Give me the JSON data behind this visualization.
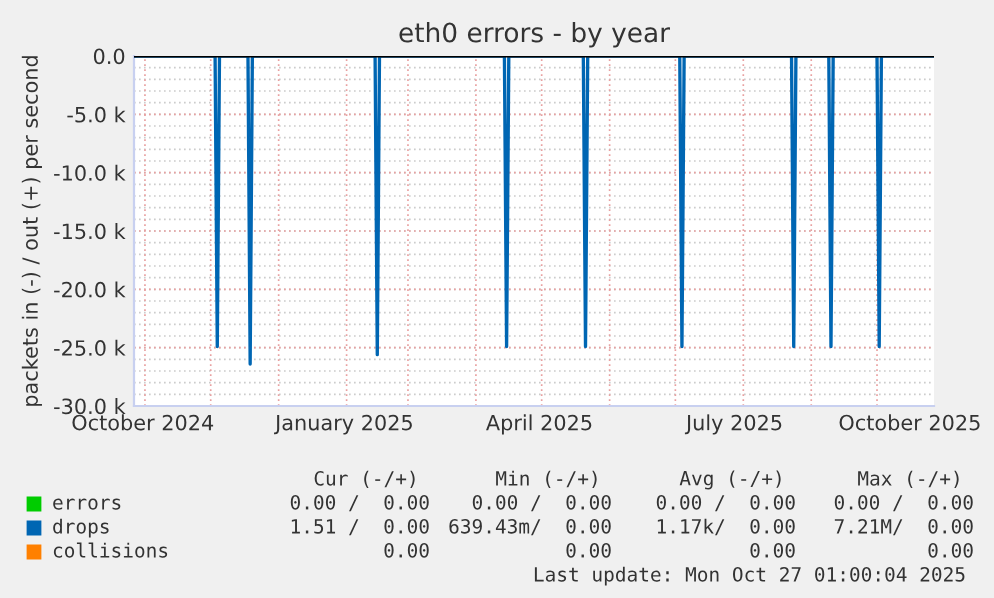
{
  "chart_data": {
    "type": "line",
    "title": "eth0 errors - by year",
    "ylabel": "packets in (-) / out (+) per second",
    "xlim": [
      "2024-10-27",
      "2025-10-27"
    ],
    "xticks": [
      {
        "value": "2024-11-01",
        "label": null
      },
      {
        "value": "2024-12-01",
        "label": null
      },
      {
        "value": "2025-01-01",
        "label": null
      },
      {
        "value": "2025-02-01",
        "label": null
      },
      {
        "value": "2025-03-01",
        "label": null
      },
      {
        "value": "2025-04-01",
        "label": null
      },
      {
        "value": "2025-05-01",
        "label": null
      },
      {
        "value": "2025-06-01",
        "label": null
      },
      {
        "value": "2025-07-01",
        "label": null
      },
      {
        "value": "2025-08-01",
        "label": null
      },
      {
        "value": "2025-09-01",
        "label": null
      },
      {
        "value": "2025-10-01",
        "label": null
      },
      {
        "value": "2024-10-31",
        "label": "October 2024"
      },
      {
        "value": "2025-01-31",
        "label": "January 2025"
      },
      {
        "value": "2025-04-30",
        "label": "April 2025"
      },
      {
        "value": "2025-07-28",
        "label": "July 2025"
      },
      {
        "value": "2025-10-16",
        "label": "October 2025"
      }
    ],
    "ylim": [
      -30000,
      0
    ],
    "yticks": [
      {
        "value": -30000,
        "label": "-30.0 k"
      },
      {
        "value": -25000,
        "label": "-25.0 k"
      },
      {
        "value": -20000,
        "label": "-20.0 k"
      },
      {
        "value": -15000,
        "label": "-15.0 k"
      },
      {
        "value": -10000,
        "label": "-10.0 k"
      },
      {
        "value": -5000,
        "label": "-5.0 k"
      },
      {
        "value": 0,
        "label": "0.0"
      }
    ],
    "grid": true,
    "legend": "bottom",
    "marker": "none",
    "line_style": "solid",
    "ref_lines": [
      {
        "axis": "y",
        "value": 0,
        "color": "#000000"
      }
    ],
    "series": [
      {
        "name": "errors",
        "color": "#00cc00"
      },
      {
        "name": "drops",
        "color": "#0066b3",
        "x": [
          "2024-10-27",
          "2024-12-03",
          "2024-12-04",
          "2024-12-05",
          "2024-12-18",
          "2024-12-19",
          "2024-12-20",
          "2025-02-14",
          "2025-02-15",
          "2025-02-16",
          "2025-04-14",
          "2025-04-15",
          "2025-04-16",
          "2025-05-20",
          "2025-05-21",
          "2025-05-22",
          "2025-07-03",
          "2025-07-04",
          "2025-07-05",
          "2025-08-23",
          "2025-08-24",
          "2025-08-25",
          "2025-09-09",
          "2025-09-10",
          "2025-09-11",
          "2025-10-01",
          "2025-10-02",
          "2025-10-03",
          "2025-10-27"
        ],
        "values": [
          0,
          0,
          -24900,
          0,
          0,
          -26400,
          0,
          0,
          -25600,
          0,
          0,
          -24900,
          0,
          0,
          -24900,
          0,
          0,
          -24900,
          0,
          0,
          -24900,
          0,
          0,
          -24900,
          0,
          0,
          -24900,
          0,
          0
        ]
      },
      {
        "name": "collisions",
        "color": "#ff8000"
      }
    ],
    "annotations": [
      "Cur (-/+)",
      "Min (-/+)",
      "Avg (-/+)",
      "Max (-/+)",
      "0.00 /  0.00",
      "0.00 /  0.00",
      "0.00 /  0.00",
      "0.00 /  0.00",
      "1.51 /  0.00",
      "639.43m/  0.00",
      "1.17k/  0.00",
      "7.21M/  0.00",
      "0.00",
      "0.00",
      "0.00",
      "0.00",
      "Last update: Mon Oct 27 01:00:04 2025"
    ]
  }
}
